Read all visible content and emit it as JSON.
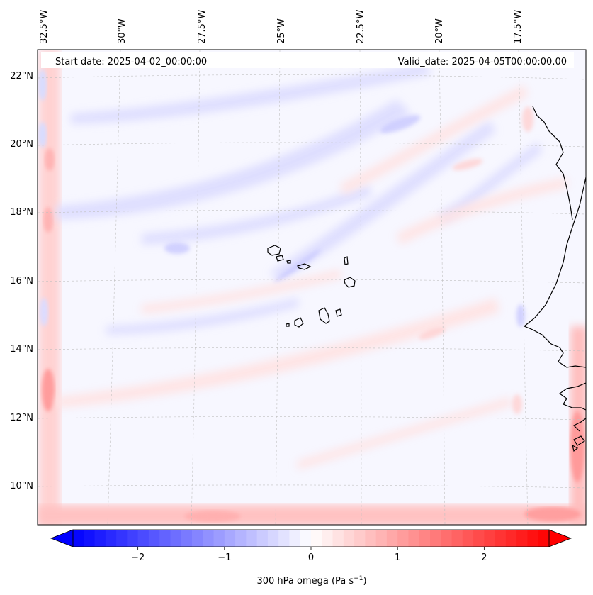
{
  "map": {
    "start_label": "Start date: 2025-04-02_00:00:00",
    "valid_label": "Valid_date: 2025-04-05T00:00:00.00",
    "lon_labels": [
      "32.5°W",
      "30°W",
      "27.5°W",
      "25°W",
      "22.5°W",
      "20°W",
      "17.5°W"
    ],
    "lat_labels": [
      "22°N",
      "20°N",
      "18°N",
      "16°N",
      "14°N",
      "12°N",
      "10°N"
    ],
    "variable": "300 hPa omega",
    "units_main": "Pa s",
    "units_exp": "−1"
  },
  "colorbar": {
    "min": -2.75,
    "max": 2.75,
    "ticks": [
      -2,
      -1,
      0,
      1,
      2
    ],
    "tick_labels": [
      "−2",
      "−1",
      "0",
      "1",
      "2"
    ],
    "color_negative": "#0000ff",
    "color_zero": "#ffffff",
    "color_positive": "#ff0000"
  }
}
